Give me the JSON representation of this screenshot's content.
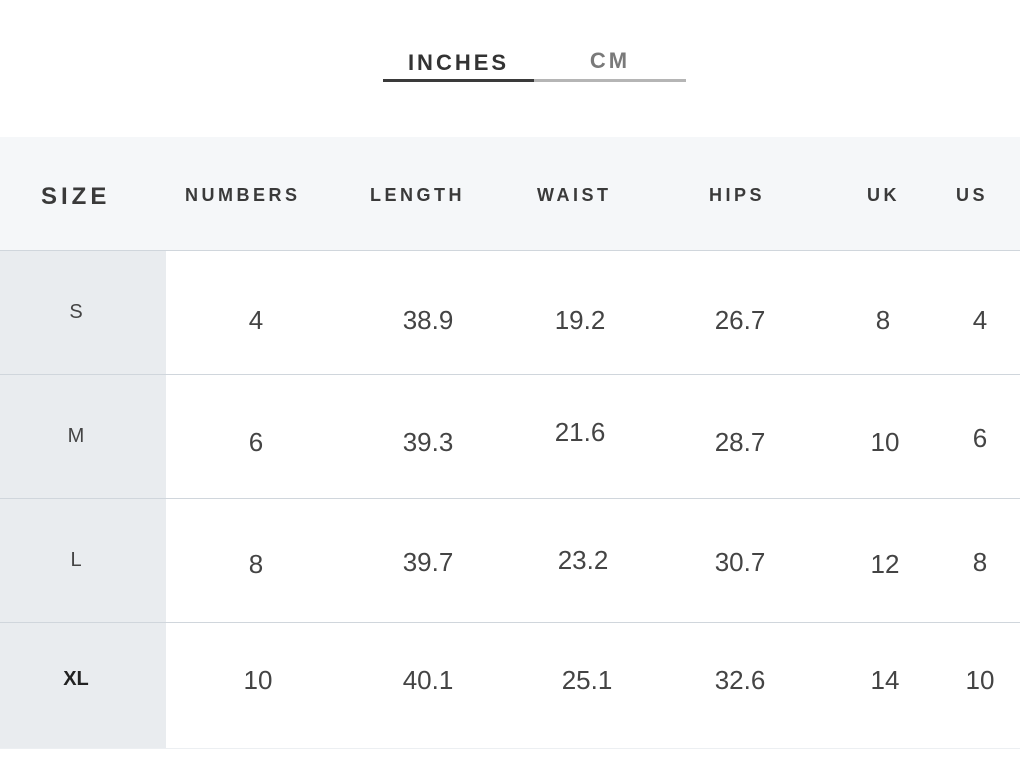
{
  "unit_tabs": {
    "inches_label": "INCHES",
    "cm_label": "CM",
    "selected": "INCHES"
  },
  "table": {
    "columns": [
      "SIZE",
      "NUMBERS",
      "LENGTH",
      "WAIST",
      "HIPS",
      "UK",
      "US"
    ],
    "rows": [
      {
        "size": "S",
        "numbers": "4",
        "length": "38.9",
        "waist": "19.2",
        "hips": "26.7",
        "uk": "8",
        "us": "4"
      },
      {
        "size": "M",
        "numbers": "6",
        "length": "39.3",
        "waist": "21.6",
        "hips": "28.7",
        "uk": "10",
        "us": "6"
      },
      {
        "size": "L",
        "numbers": "8",
        "length": "39.7",
        "waist": "23.2",
        "hips": "30.7",
        "uk": "12",
        "us": "8"
      },
      {
        "size": "XL",
        "numbers": "10",
        "length": "40.1",
        "waist": "25.1",
        "hips": "32.6",
        "uk": "14",
        "us": "10"
      }
    ]
  },
  "colors": {
    "header_bg": "#f5f7f9",
    "size_column_bg": "#e9ecef",
    "active_tab_underline": "#3a3a3a",
    "inactive_tab_underline": "#b5b5b5"
  }
}
